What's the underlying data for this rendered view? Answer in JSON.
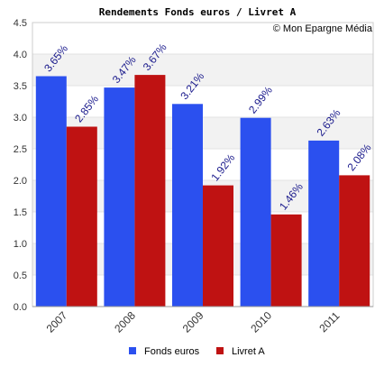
{
  "chart_data": {
    "type": "bar",
    "title": "Rendements Fonds euros / Livret A",
    "source_note": "© Mon Epargne Média",
    "categories": [
      "2007",
      "2008",
      "2009",
      "2010",
      "2011"
    ],
    "series": [
      {
        "name": "Fonds euros",
        "color": "#2b50ef",
        "values": [
          3.65,
          3.47,
          3.21,
          2.99,
          2.63
        ],
        "labels": [
          "3.65%",
          "3.47%",
          "3.21%",
          "2.99%",
          "2.63%"
        ]
      },
      {
        "name": "Livret A",
        "color": "#bf1212",
        "values": [
          2.85,
          3.67,
          1.92,
          1.46,
          2.08
        ],
        "labels": [
          "2.85%",
          "3.67%",
          "1.92%",
          "1.46%",
          "2.08%"
        ]
      }
    ],
    "ylim": [
      0,
      4.5
    ],
    "yticks": [
      "0.0",
      "0.5",
      "1.0",
      "1.5",
      "2.0",
      "2.5",
      "3.0",
      "3.5",
      "4.0",
      "4.5"
    ],
    "grid": true,
    "legend_position": "bottom"
  }
}
